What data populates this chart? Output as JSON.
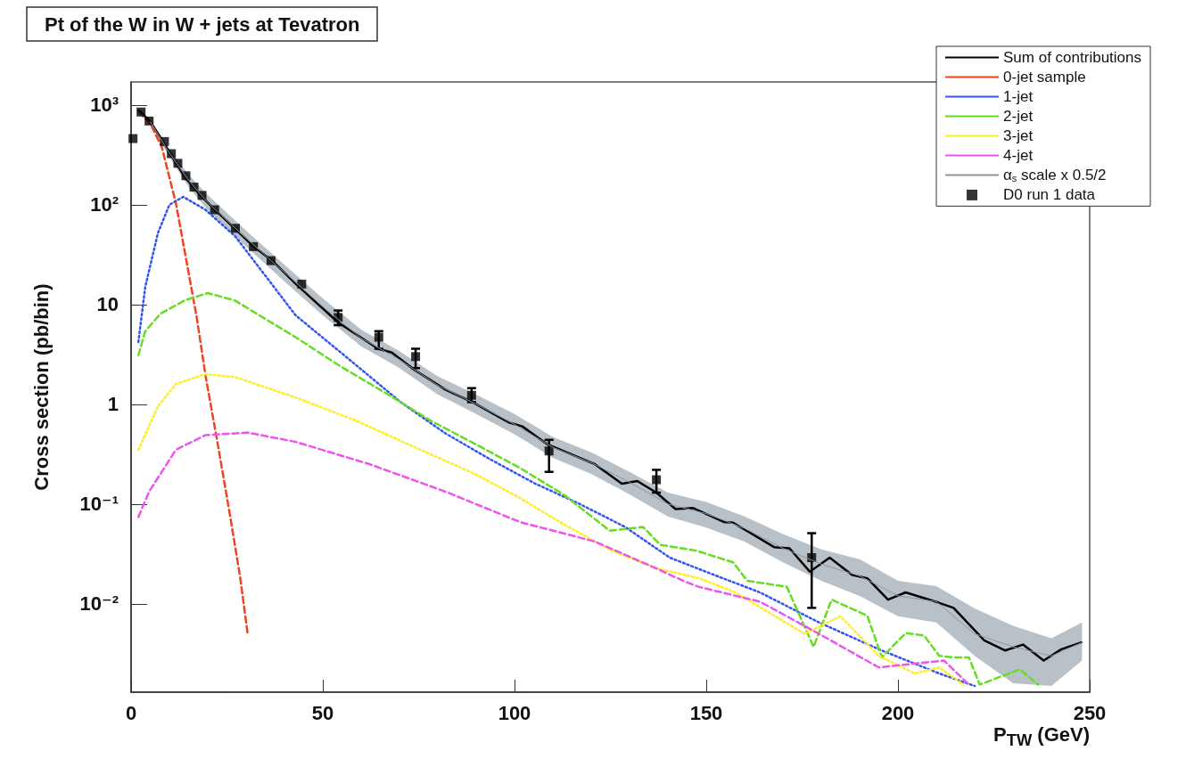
{
  "chart_data": {
    "type": "line",
    "title": "Pt of the W in W + jets at Tevatron",
    "xlabel": "P$_{TW}$ (GeV)",
    "ylabel": "Cross section (pb/bin)",
    "log": "y",
    "grid": false,
    "legend": "top right",
    "marker": "none",
    "xlim": [
      0,
      250
    ],
    "xticks": [
      0,
      50,
      100,
      150,
      200,
      250
    ],
    "ylim": [
      0.0013,
      1700
    ],
    "yticks": [
      {
        "value": 0.01,
        "label": "10⁻²"
      },
      {
        "value": 0.1,
        "label": "10⁻¹"
      },
      1,
      10,
      {
        "value": 100,
        "label": "10²"
      },
      {
        "value": 1000,
        "label": "10³"
      }
    ],
    "series": [
      {
        "name": "Sum of contributions",
        "color": "#000000",
        "line_style": "solid",
        "x": [
          2,
          2.5,
          5,
          8,
          11,
          14,
          18,
          22,
          27,
          32,
          37,
          43,
          54,
          64.4,
          68,
          74,
          82,
          89,
          98.4,
          102,
          108.4,
          121,
          128,
          132,
          137,
          142,
          146.6,
          154.6,
          157,
          167.7,
          171.7,
          177,
          182.2,
          188,
          192,
          197.4,
          202,
          210.8,
          214.5,
          222.5,
          227.9,
          232.6,
          238,
          242.6,
          247.8
        ],
        "values": [
          880,
          850,
          680,
          450,
          290,
          190,
          125,
          88,
          58,
          38,
          27,
          16,
          6.6,
          3.6,
          3.3,
          2.2,
          1.4,
          1.05,
          0.66,
          0.6,
          0.4,
          0.25,
          0.16,
          0.17,
          0.13,
          0.089,
          0.091,
          0.066,
          0.065,
          0.037,
          0.036,
          0.021,
          0.029,
          0.0195,
          0.018,
          0.011,
          0.013,
          0.0102,
          0.0091,
          0.0043,
          0.0034,
          0.0039,
          0.0027,
          0.0035,
          0.0041
        ]
      },
      {
        "name": "0-jet sample",
        "color": "#ee4422",
        "line_style": "dashed",
        "x": [
          2,
          5,
          8,
          11.7,
          14.8,
          17.1,
          19.4,
          22.5,
          25.7,
          28.4,
          30.4
        ],
        "values": [
          850,
          650,
          380,
          103,
          23,
          7.5,
          1.95,
          0.42,
          0.081,
          0.019,
          0.005
        ]
      },
      {
        "name": "1-jet",
        "color": "#3355ee",
        "line_style": "dotted",
        "x": [
          1.9,
          3.7,
          7,
          10,
          13.6,
          19.4,
          27.2,
          42.9,
          58.5,
          70.3,
          82,
          93.7,
          105.4,
          117,
          128.8,
          140.5,
          152,
          164,
          179.4,
          195,
          210.8,
          220
        ],
        "values": [
          4.2,
          15,
          52,
          100,
          120,
          89,
          48,
          7.8,
          2.5,
          1.05,
          0.51,
          0.28,
          0.16,
          0.1,
          0.059,
          0.029,
          0.0195,
          0.013,
          0.0065,
          0.0035,
          0.002,
          0.0015
        ]
      },
      {
        "name": "2-jet",
        "color": "#66dd22",
        "line_style": "dashed",
        "x": [
          1.9,
          3.7,
          7.7,
          14,
          20,
          27,
          42.9,
          54.6,
          66.3,
          78,
          89.7,
          101.4,
          113,
          124.8,
          133.5,
          138,
          147.5,
          157,
          160.7,
          171,
          178,
          182.7,
          192,
          195.8,
          202,
          206.8,
          210.8,
          214.5,
          218.5,
          221.3,
          231.8,
          236.5
        ],
        "values": [
          3.1,
          5.4,
          8.1,
          11,
          13,
          11,
          4.7,
          2.4,
          1.3,
          0.69,
          0.4,
          0.23,
          0.123,
          0.054,
          0.059,
          0.039,
          0.034,
          0.026,
          0.017,
          0.0148,
          0.0037,
          0.011,
          0.0076,
          0.0029,
          0.0051,
          0.0048,
          0.003,
          0.0029,
          0.0029,
          0.00155,
          0.0022,
          0.00155
        ]
      },
      {
        "name": "3-jet",
        "color": "#ffee22",
        "line_style": "dotted",
        "x": [
          1.9,
          7,
          11.7,
          19.4,
          27.2,
          42.9,
          58.5,
          74,
          89.7,
          101.4,
          113,
          124.8,
          136.5,
          148.2,
          157.6,
          175.6,
          185,
          195,
          204.4,
          210.8,
          217
        ],
        "values": [
          0.35,
          0.95,
          1.6,
          2.0,
          1.87,
          1.17,
          0.69,
          0.37,
          0.2,
          0.115,
          0.062,
          0.035,
          0.023,
          0.018,
          0.013,
          0.005,
          0.0075,
          0.003,
          0.002,
          0.0023,
          0.00155
        ]
      },
      {
        "name": "4-jet",
        "color": "#ee55ee",
        "line_style": "dashed",
        "x": [
          1.9,
          4.7,
          11.7,
          19.4,
          30.4,
          42.9,
          62.3,
          82,
          101.4,
          121,
          136.5,
          144,
          148,
          164,
          179.4,
          195,
          212,
          218.5
        ],
        "values": [
          0.074,
          0.133,
          0.35,
          0.49,
          0.52,
          0.42,
          0.25,
          0.133,
          0.066,
          0.042,
          0.023,
          0.017,
          0.0148,
          0.0105,
          0.005,
          0.0023,
          0.0027,
          0.00155
        ]
      },
      {
        "name": "α$_{s}$ scale x 0.5/2",
        "color": "#8a98a3",
        "x": [
          5,
          10,
          15,
          20,
          30,
          40,
          50,
          60,
          70,
          80,
          90,
          100,
          110,
          120,
          130,
          140,
          150,
          160,
          170,
          180,
          190,
          200,
          210,
          220,
          230,
          240,
          248
        ],
        "values": [
          680,
          330,
          175,
          105,
          46,
          21,
          9.5,
          4.6,
          2.8,
          1.55,
          1.0,
          0.63,
          0.37,
          0.26,
          0.165,
          0.1,
          0.08,
          0.057,
          0.036,
          0.025,
          0.019,
          0.012,
          0.0105,
          0.005,
          0.0037,
          0.003,
          0.0041
        ],
        "lower": [
          640,
          300,
          150,
          88,
          38,
          17,
          7.8,
          3.8,
          2.3,
          1.25,
          0.8,
          0.5,
          0.29,
          0.2,
          0.125,
          0.075,
          0.058,
          0.042,
          0.026,
          0.017,
          0.012,
          0.0075,
          0.0065,
          0.003,
          0.0016,
          0.0015,
          0.0027
        ],
        "upper": [
          720,
          360,
          200,
          125,
          55,
          25,
          11.5,
          5.6,
          3.4,
          1.9,
          1.25,
          0.8,
          0.47,
          0.33,
          0.21,
          0.13,
          0.105,
          0.075,
          0.05,
          0.035,
          0.028,
          0.017,
          0.015,
          0.009,
          0.006,
          0.0045,
          0.0065
        ]
      },
      {
        "name": "D0 run 1 data",
        "type": "scatter",
        "color": "#000000",
        "marker": "square",
        "x": [
          0.5,
          2.6,
          4.7,
          8.7,
          10.5,
          12.2,
          14.3,
          16.4,
          18.5,
          21.8,
          27.2,
          31.9,
          36.5,
          44.5,
          54,
          64.6,
          74.2,
          88.8,
          109,
          137,
          177.5
        ],
        "values": [
          460,
          850,
          690,
          430,
          325,
          260,
          195,
          150,
          124,
          89,
          58,
          38,
          27.5,
          16,
          7.4,
          4.7,
          3.0,
          1.23,
          0.34,
          0.175,
          0.029
        ],
        "errors": [
          null,
          null,
          null,
          null,
          null,
          null,
          null,
          null,
          null,
          null,
          null,
          null,
          null,
          null,
          [
            6.2,
            8.7
          ],
          [
            3.6,
            5.4
          ],
          [
            2.3,
            3.6
          ],
          [
            1.05,
            1.45
          ],
          [
            0.21,
            0.44
          ],
          [
            0.13,
            0.22
          ],
          [
            0.0091,
            0.051
          ]
        ]
      }
    ]
  }
}
